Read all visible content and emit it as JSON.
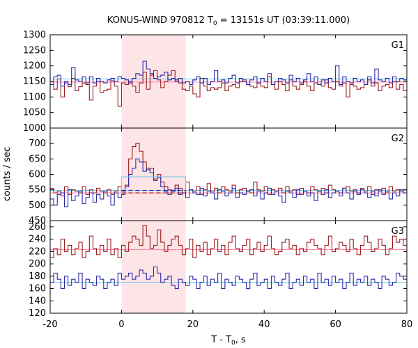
{
  "chart_data": {
    "type": "line",
    "title": "KONUS-WIND 970812 T",
    "title_sub": "0",
    "title_rest": " = 13151s UT (03:39:11.000)",
    "xlabel": "T - T",
    "xlabel_sub": "0",
    "xlabel_rest": ", s",
    "ylabel": "counts / sec",
    "xlim": [
      -20,
      80
    ],
    "xticks": [
      "-20",
      "0",
      "20",
      "40",
      "60",
      "80"
    ],
    "shaded_interval": [
      0,
      18
    ],
    "shade_color": "#fde4e6",
    "colors": {
      "red": "#9b1c1c",
      "blue": "#2a2aa8",
      "bg_red": "#ff7ca0",
      "bg_blue": "#6ec8f0",
      "shade": "#fde4e6"
    },
    "panels": [
      {
        "label": "G1",
        "ylim": [
          1000,
          1300
        ],
        "yticks": [
          "1000",
          "1050",
          "1100",
          "1150",
          "1200",
          "1250",
          "1300"
        ],
        "bin_start": -20,
        "bin_width": 1,
        "red_background": 1148,
        "blue_background": 1158,
        "series": [
          {
            "color": "red",
            "values": [
              1140,
              1125,
              1158,
              1100,
              1145,
              1133,
              1160,
              1120,
              1133,
              1145,
              1140,
              1090,
              1135,
              1150,
              1115,
              1120,
              1125,
              1152,
              1135,
              1070,
              1145,
              1140,
              1150,
              1135,
              1115,
              1145,
              1180,
              1125,
              1170,
              1185,
              1155,
              1130,
              1150,
              1170,
              1185,
              1155,
              1145,
              1125,
              1120,
              1135,
              1110,
              1100,
              1160,
              1135,
              1120,
              1130,
              1125,
              1130,
              1145,
              1120,
              1135,
              1140,
              1130,
              1150,
              1155,
              1140,
              1135,
              1130,
              1145,
              1135,
              1130,
              1165,
              1140,
              1125,
              1150,
              1140,
              1120,
              1155,
              1135,
              1125,
              1140,
              1150,
              1135,
              1120,
              1145,
              1140,
              1135,
              1155,
              1130,
              1125,
              1150,
              1135,
              1145,
              1100,
              1140,
              1135,
              1125,
              1130,
              1140,
              1155,
              1135,
              1145,
              1120,
              1135,
              1140,
              1130,
              1150,
              1125,
              1140,
              1120
            ]
          },
          {
            "color": "blue",
            "values": [
              1140,
              1165,
              1170,
              1135,
              1150,
              1140,
              1195,
              1155,
              1150,
              1165,
              1145,
              1165,
              1145,
              1160,
              1150,
              1145,
              1155,
              1160,
              1150,
              1165,
              1160,
              1155,
              1145,
              1160,
              1175,
              1170,
              1215,
              1190,
              1175,
              1160,
              1165,
              1170,
              1180,
              1155,
              1160,
              1150,
              1160,
              1145,
              1150,
              1140,
              1155,
              1165,
              1145,
              1160,
              1140,
              1150,
              1185,
              1150,
              1155,
              1145,
              1160,
              1170,
              1145,
              1160,
              1150,
              1140,
              1155,
              1165,
              1145,
              1160,
              1150,
              1175,
              1140,
              1150,
              1160,
              1155,
              1145,
              1170,
              1150,
              1160,
              1145,
              1155,
              1175,
              1150,
              1165,
              1140,
              1155,
              1145,
              1160,
              1150,
              1200,
              1140,
              1165,
              1150,
              1145,
              1160,
              1150,
              1155,
              1140,
              1165,
              1145,
              1190,
              1155,
              1150,
              1160,
              1145,
              1165,
              1150,
              1160,
              1155
            ]
          }
        ]
      },
      {
        "label": "G2",
        "ylim": [
          450,
          750
        ],
        "yticks": [
          "450",
          "500",
          "550",
          "600",
          "650",
          "700"
        ],
        "bin_start": -20,
        "bin_width": 1,
        "red_background": 540,
        "blue_background": 548,
        "blue_interval_level": 592,
        "series": [
          {
            "color": "red",
            "values": [
              555,
              540,
              545,
              530,
              560,
              535,
              550,
              545,
              540,
              560,
              535,
              550,
              540,
              555,
              545,
              540,
              550,
              535,
              545,
              560,
              545,
              565,
              650,
              690,
              700,
              675,
              640,
              615,
              620,
              585,
              600,
              575,
              560,
              550,
              545,
              565,
              555,
              540,
              575,
              550,
              545,
              560,
              535,
              550,
              570,
              545,
              555,
              540,
              560,
              550,
              545,
              565,
              540,
              550,
              555,
              545,
              540,
              575,
              550,
              545,
              560,
              535,
              550,
              545,
              555,
              540,
              560,
              545,
              550,
              535,
              555,
              545,
              540,
              560,
              550,
              545,
              555,
              540,
              565,
              550,
              545,
              540,
              555,
              560,
              545,
              550,
              540,
              555,
              545,
              560,
              535,
              550,
              545,
              555,
              540,
              560,
              545,
              550,
              545,
              540
            ]
          },
          {
            "color": "blue",
            "values": [
              520,
              500,
              535,
              540,
              495,
              550,
              515,
              530,
              545,
              505,
              525,
              540,
              510,
              535,
              520,
              545,
              530,
              500,
              540,
              525,
              535,
              560,
              600,
              620,
              650,
              640,
              610,
              620,
              605,
              580,
              590,
              560,
              545,
              535,
              545,
              555,
              535,
              540,
              525,
              550,
              540,
              535,
              555,
              530,
              545,
              540,
              520,
              550,
              545,
              530,
              540,
              555,
              525,
              540,
              535,
              545,
              550,
              530,
              545,
              520,
              540,
              555,
              535,
              545,
              530,
              510,
              545,
              540,
              525,
              550,
              535,
              545,
              530,
              540,
              515,
              545,
              535,
              550,
              525,
              540,
              545,
              530,
              555,
              540,
              520,
              545,
              535,
              550,
              540,
              525,
              545,
              530,
              550,
              535,
              545,
              520,
              540,
              530,
              550,
              540
            ]
          }
        ]
      },
      {
        "label": "G3",
        "ylim": [
          120,
          270
        ],
        "yticks": [
          "120",
          "140",
          "160",
          "180",
          "200",
          "220",
          "240",
          "260"
        ],
        "bin_start": -20,
        "bin_width": 1,
        "red_background": 223,
        "blue_background": 170,
        "series": [
          {
            "color": "red",
            "values": [
              210,
              225,
              215,
              240,
              220,
              230,
              215,
              225,
              235,
              210,
              220,
              245,
              225,
              215,
              230,
              220,
              240,
              215,
              225,
              210,
              230,
              220,
              235,
              245,
              240,
              230,
              262,
              245,
              225,
              230,
              255,
              235,
              220,
              230,
              240,
              245,
              230,
              215,
              225,
              240,
              210,
              230,
              220,
              235,
              215,
              225,
              240,
              220,
              230,
              215,
              235,
              245,
              225,
              220,
              230,
              240,
              215,
              225,
              235,
              220,
              230,
              245,
              225,
              215,
              220,
              235,
              240,
              225,
              230,
              215,
              225,
              220,
              235,
              240,
              230,
              225,
              215,
              230,
              245,
              220,
              225,
              235,
              230,
              220,
              240,
              225,
              215,
              230,
              245,
              235,
              220,
              225,
              240,
              230,
              215,
              225,
              245,
              235,
              240,
              230
            ]
          },
          {
            "color": "blue",
            "values": [
              170,
              185,
              175,
              160,
              180,
              165,
              175,
              170,
              185,
              160,
              175,
              170,
              165,
              180,
              175,
              160,
              170,
              175,
              165,
              185,
              175,
              180,
              185,
              175,
              180,
              190,
              185,
              175,
              180,
              195,
              185,
              170,
              175,
              180,
              165,
              160,
              175,
              170,
              165,
              180,
              175,
              160,
              170,
              180,
              165,
              175,
              170,
              185,
              160,
              175,
              170,
              165,
              180,
              175,
              170,
              160,
              175,
              185,
              165,
              170,
              175,
              160,
              180,
              170,
              165,
              175,
              185,
              160,
              170,
              175,
              165,
              180,
              170,
              175,
              160,
              185,
              170,
              175,
              165,
              180,
              170,
              175,
              160,
              170,
              185,
              165,
              175,
              170,
              180,
              165,
              175,
              170,
              160,
              180,
              175,
              165,
              170,
              185,
              180,
              175
            ]
          }
        ]
      }
    ]
  }
}
